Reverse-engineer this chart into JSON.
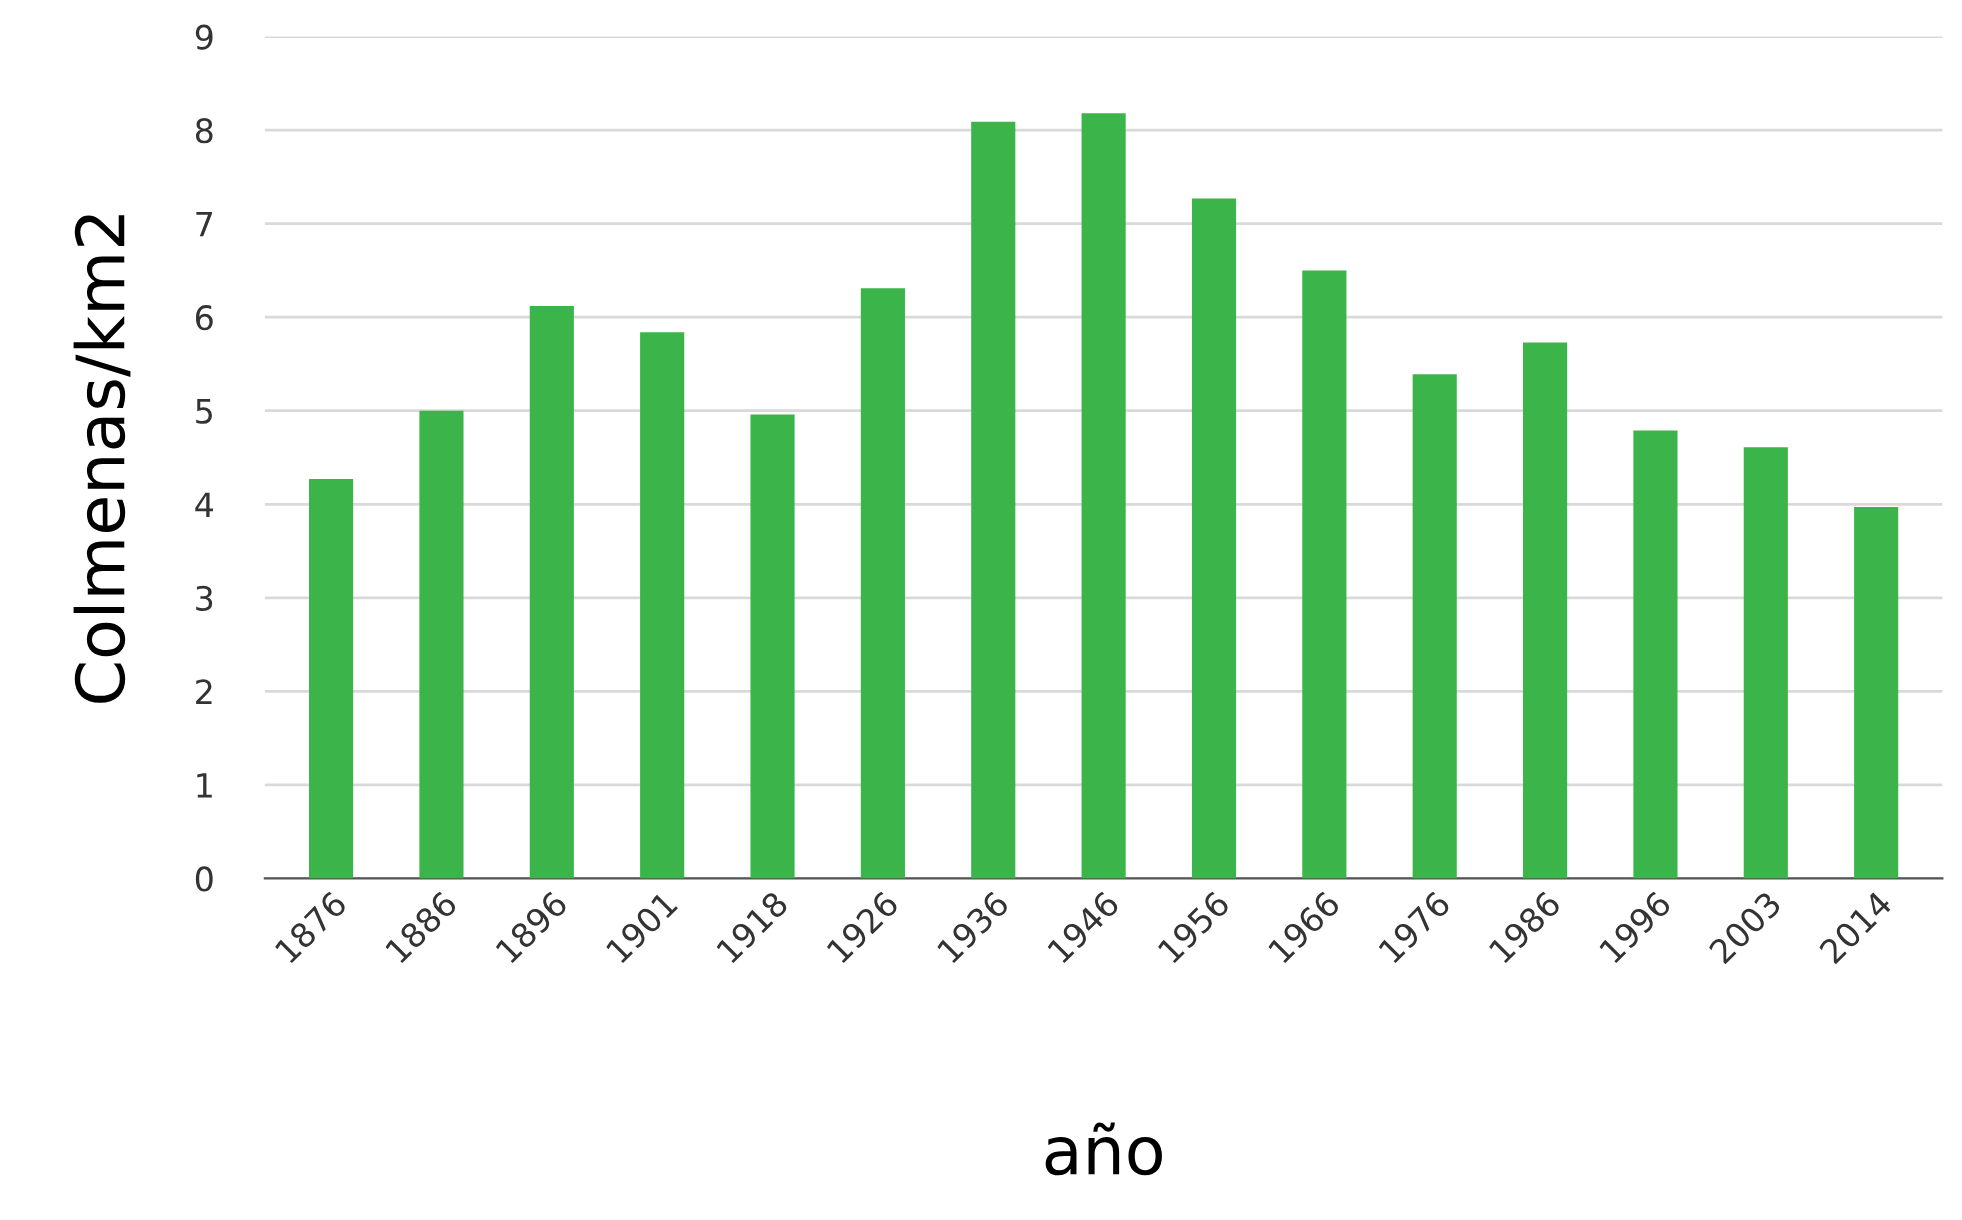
{
  "chart_data": {
    "type": "bar",
    "xlabel": "año",
    "ylabel": "Colmenas/km2",
    "categories": [
      "1876",
      "1886",
      "1896",
      "1901",
      "1918",
      "1926",
      "1936",
      "1946",
      "1956",
      "1966",
      "1976",
      "1986",
      "1996",
      "2003",
      "2014"
    ],
    "values": [
      4.27,
      5.0,
      6.12,
      5.84,
      4.96,
      6.31,
      8.09,
      8.18,
      7.27,
      6.5,
      5.39,
      5.73,
      4.79,
      4.61,
      3.97
    ],
    "color": "#3bb54a",
    "ylim": [
      0,
      9
    ],
    "yticks": [
      0,
      1,
      2,
      3,
      4,
      5,
      6,
      7,
      8,
      9
    ],
    "grid": "y"
  }
}
